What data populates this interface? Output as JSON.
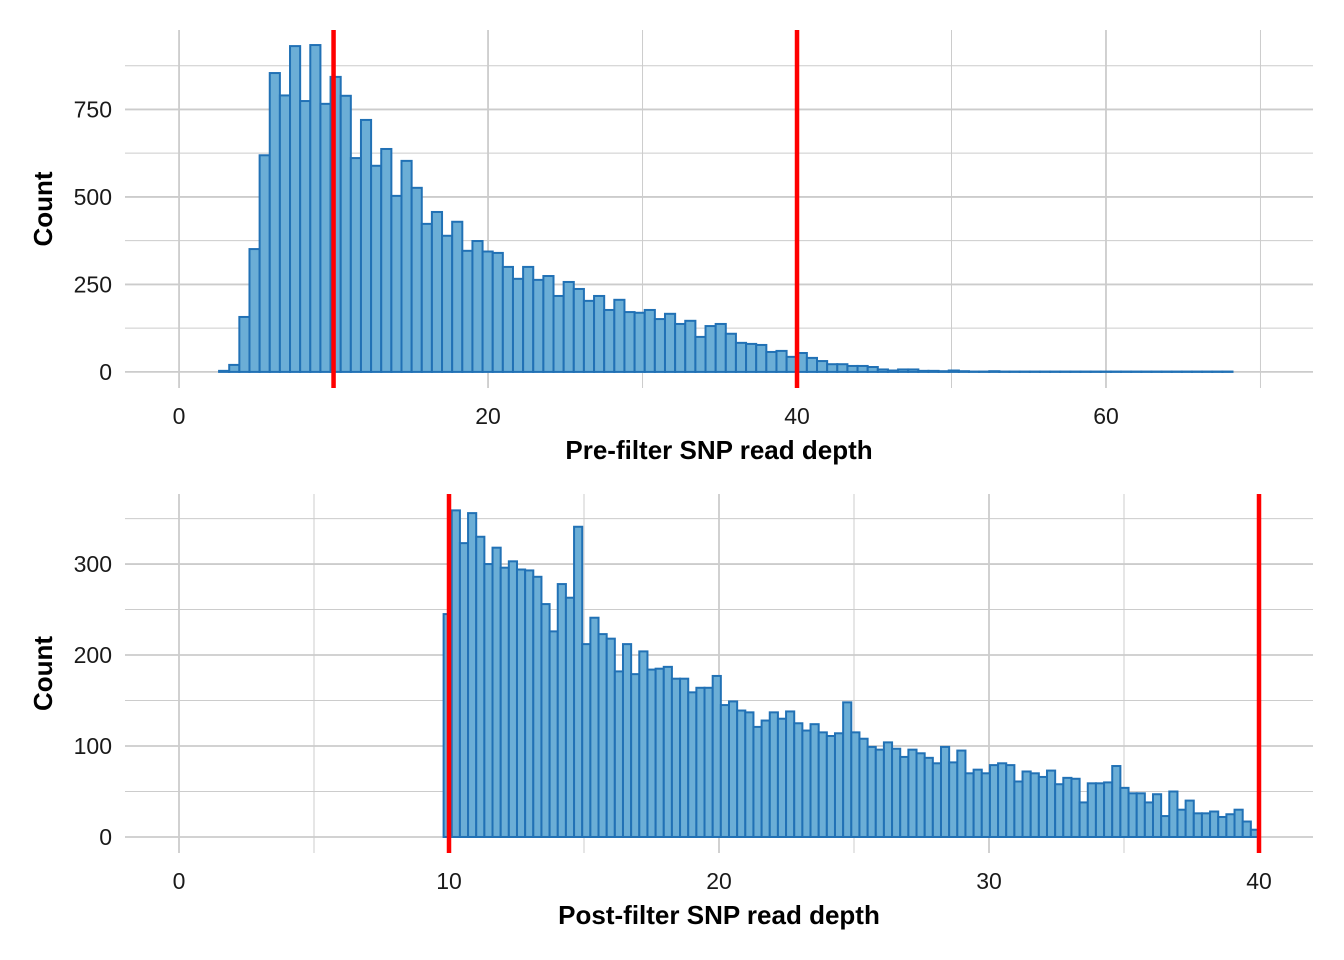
{
  "chart_data": [
    {
      "type": "histogram",
      "xlabel": "Pre-filter SNP read depth",
      "ylabel": "Count",
      "xlim": [
        -3.5,
        73.4
      ],
      "ylim": [
        -46,
        977
      ],
      "x_ticks": [
        0,
        20,
        40,
        60
      ],
      "y_ticks": [
        0,
        250,
        500,
        750
      ],
      "grid": true,
      "bin_start": 2.59,
      "bin_width": 0.656,
      "counts": [
        3,
        20,
        157,
        351,
        619,
        854,
        790,
        931,
        774,
        934,
        766,
        843,
        789,
        611,
        720,
        589,
        637,
        503,
        603,
        526,
        423,
        457,
        389,
        429,
        346,
        374,
        344,
        340,
        300,
        266,
        300,
        263,
        274,
        217,
        257,
        237,
        203,
        217,
        177,
        206,
        171,
        169,
        177,
        151,
        166,
        137,
        146,
        100,
        131,
        137,
        109,
        83,
        80,
        77,
        57,
        60,
        43,
        54,
        40,
        31,
        22,
        22,
        17,
        17,
        14,
        7,
        4,
        7,
        7,
        3,
        3,
        2,
        4,
        2,
        1,
        1,
        2,
        1,
        1,
        1,
        1,
        1,
        1,
        1,
        1,
        1,
        1,
        1,
        1,
        1,
        1,
        1,
        1,
        1,
        1,
        1,
        1,
        1,
        1,
        1
      ],
      "vlines": [
        10,
        40
      ],
      "colors": {
        "fill": "#6baed6",
        "edge": "#2171b5",
        "vline": "#ff0000",
        "grid": "#cccccc"
      }
    },
    {
      "type": "histogram",
      "xlabel": "Post-filter SNP read depth",
      "ylabel": "Count",
      "xlim": [
        -2,
        42
      ],
      "ylim": [
        -17.6,
        377
      ],
      "x_ticks": [
        0,
        10,
        20,
        30,
        40
      ],
      "y_ticks": [
        0,
        100,
        200,
        300
      ],
      "grid": true,
      "bin_start": 9.8,
      "bin_width": 0.302,
      "counts": [
        245,
        359,
        323,
        356,
        330,
        300,
        318,
        296,
        303,
        294,
        293,
        286,
        256,
        226,
        278,
        263,
        341,
        212,
        241,
        223,
        218,
        182,
        212,
        179,
        204,
        184,
        185,
        187,
        174,
        174,
        159,
        164,
        164,
        177,
        145,
        149,
        139,
        137,
        121,
        128,
        137,
        130,
        138,
        125,
        117,
        124,
        115,
        111,
        114,
        148,
        115,
        108,
        99,
        96,
        104,
        97,
        88,
        96,
        92,
        87,
        81,
        99,
        82,
        95,
        70,
        74,
        70,
        79,
        81,
        79,
        61,
        72,
        70,
        66,
        73,
        58,
        65,
        64,
        38,
        59,
        59,
        60,
        78,
        54,
        48,
        48,
        38,
        47,
        23,
        50,
        30,
        40,
        26,
        26,
        28,
        22,
        25,
        30,
        17,
        8
      ],
      "vlines": [
        10,
        40
      ],
      "colors": {
        "fill": "#6baed6",
        "edge": "#2171b5",
        "vline": "#ff0000",
        "grid": "#cccccc"
      }
    }
  ]
}
